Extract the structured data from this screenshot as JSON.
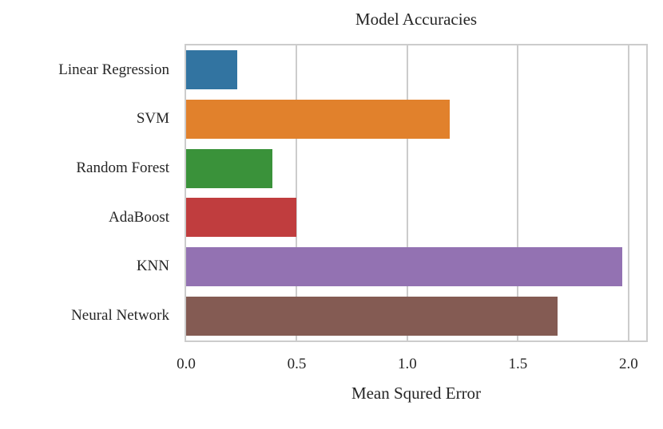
{
  "chart_data": {
    "type": "bar",
    "orientation": "horizontal",
    "title": "Model Accuracies",
    "xlabel": "Mean Squred Error",
    "ylabel": "",
    "categories": [
      "Linear Regression",
      "SVM",
      "Random Forest",
      "AdaBoost",
      "KNN",
      "Neural Network"
    ],
    "values": [
      0.23,
      1.19,
      0.39,
      0.5,
      1.97,
      1.68
    ],
    "bar_colors": [
      "#3274a1",
      "#e1812c",
      "#3a923a",
      "#c03d3e",
      "#9372b2",
      "#845b53"
    ],
    "xlim": [
      0,
      2.08
    ],
    "xticks": [
      0.0,
      0.5,
      1.0,
      1.5,
      2.0
    ],
    "xtick_labels": [
      "0.0",
      "0.5",
      "1.0",
      "1.5",
      "2.0"
    ],
    "grid": true,
    "legend": false,
    "grid_color": "#cccccc",
    "spine_color": "#cccccc",
    "text_color": "#262626",
    "background": "#ffffff",
    "bar_width_fraction": 0.8
  }
}
